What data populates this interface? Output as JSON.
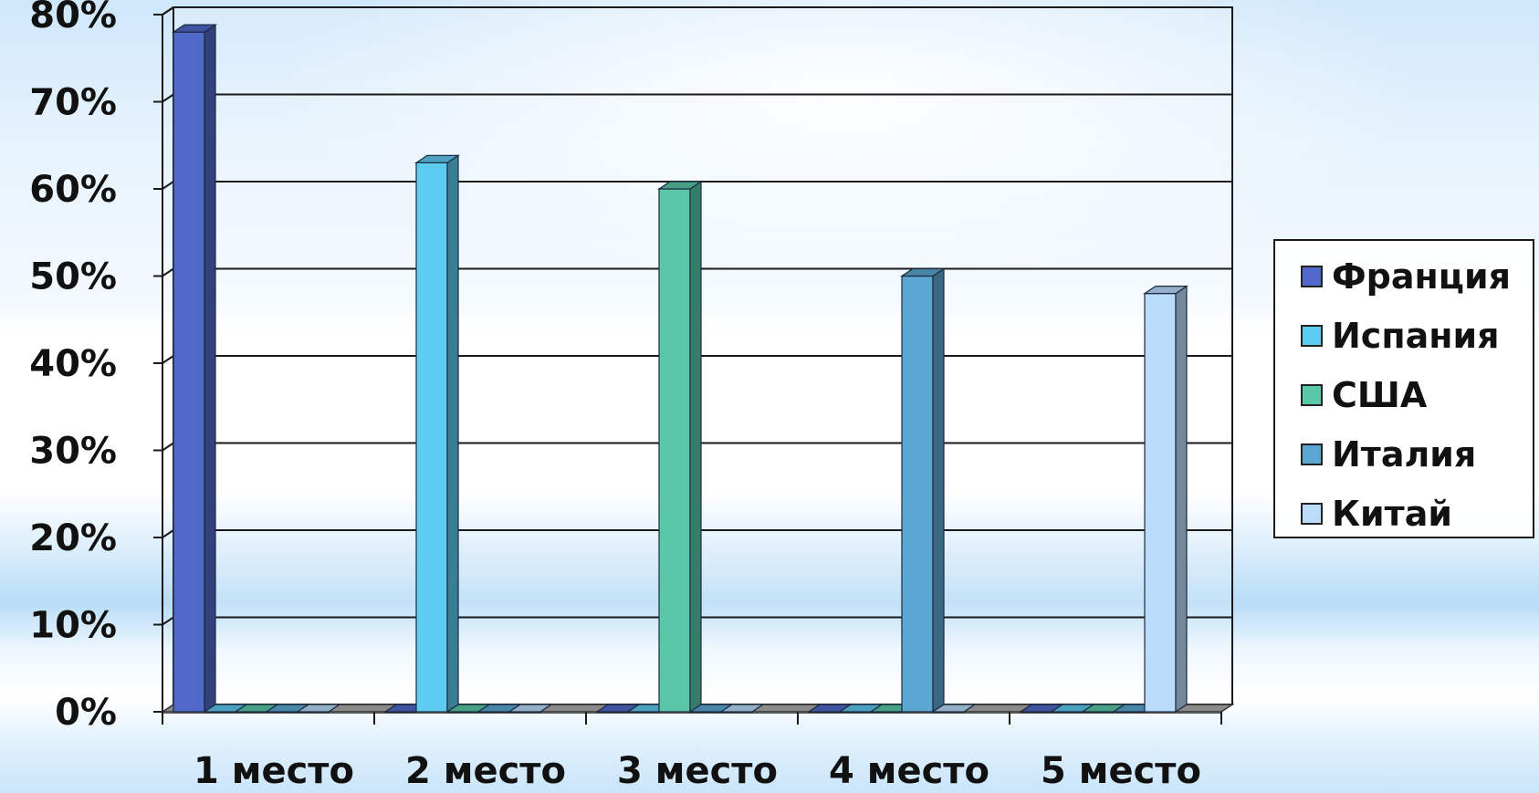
{
  "chart_data": {
    "type": "bar",
    "categories": [
      "1 место",
      "2 место",
      "3 место",
      "4 место",
      "5 место"
    ],
    "series": [
      {
        "name": "Франция",
        "color": "#5068c8",
        "values": [
          78,
          0,
          0,
          0,
          0
        ]
      },
      {
        "name": "Испания",
        "color": "#5ecbf0",
        "values": [
          0,
          63,
          0,
          0,
          0
        ]
      },
      {
        "name": "США",
        "color": "#58c8a8",
        "values": [
          0,
          0,
          60,
          0,
          0
        ]
      },
      {
        "name": "Италия",
        "color": "#5aa8d2",
        "values": [
          0,
          0,
          0,
          50,
          0
        ]
      },
      {
        "name": "Китай",
        "color": "#b8dcfa",
        "values": [
          0,
          0,
          0,
          0,
          48
        ]
      }
    ],
    "ylim": [
      0,
      80
    ],
    "yticks": [
      0,
      10,
      20,
      30,
      40,
      50,
      60,
      70,
      80
    ],
    "ytick_suffix": "%",
    "grid": true,
    "legend_position": "right",
    "style": "3d-clustered-columns"
  }
}
